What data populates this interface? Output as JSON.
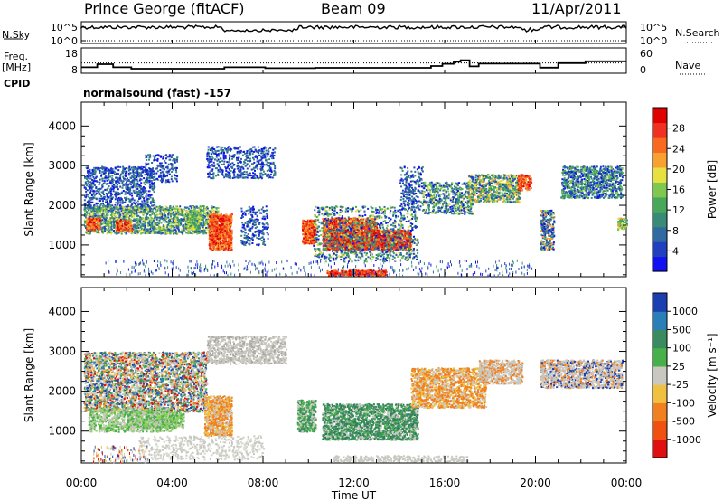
{
  "header": {
    "station": "Prince George (fitACF)",
    "beam": "Beam 09",
    "date": "11/Apr/2011"
  },
  "labels": {
    "n_sky": "N.Sky",
    "n_search": "N.Search",
    "freq": "Freq.",
    "freq_unit": "[MHz]",
    "nave": "Nave",
    "cpid": "CPID",
    "program": "normalsound (fast) -157"
  },
  "chart_data": [
    {
      "type": "line",
      "name": "noise-panel",
      "ylabels_left": [
        "10^5",
        "10^0"
      ],
      "ylabels_right": [
        "10^5",
        "10^0"
      ]
    },
    {
      "type": "line",
      "name": "freq-nave-panel",
      "ylabels_left": [
        "18",
        "8"
      ],
      "ylabels_right": [
        "60",
        "0"
      ],
      "freq_steps": [
        {
          "t": 0.0,
          "v": 10.3
        },
        {
          "t": 0.7,
          "v": 12.0
        },
        {
          "t": 1.4,
          "v": 10.3
        },
        {
          "t": 2.2,
          "v": 9.5
        },
        {
          "t": 6.3,
          "v": 10.3
        },
        {
          "t": 8.1,
          "v": 9.8
        },
        {
          "t": 10.3,
          "v": 10.0
        },
        {
          "t": 15.4,
          "v": 11.0
        },
        {
          "t": 15.9,
          "v": 12.2
        },
        {
          "t": 16.4,
          "v": 13.3
        },
        {
          "t": 16.7,
          "v": 14.2
        },
        {
          "t": 17.1,
          "v": 10.8
        },
        {
          "t": 17.5,
          "v": 12.3
        },
        {
          "t": 20.2,
          "v": 10.1
        },
        {
          "t": 21.0,
          "v": 12.6
        },
        {
          "t": 22.2,
          "v": 13.6
        },
        {
          "t": 23.0,
          "v": 13.6
        },
        {
          "t": 24.0,
          "v": 13.6
        }
      ],
      "nave_level": 28
    },
    {
      "type": "heatmap",
      "name": "power",
      "ylabel": "Slant Range [km]",
      "yticks": [
        "1000",
        "2000",
        "3000",
        "4000"
      ],
      "ylim": [
        200,
        4600
      ],
      "colorbar_label": "Power [dB]",
      "colorbar_ticks": [
        "28",
        "24",
        "20",
        "16",
        "12",
        "8",
        "4"
      ],
      "colorbar_colors": [
        "#1010f0",
        "#2040c0",
        "#2f6aa0",
        "#3a8a78",
        "#48a85a",
        "#7ec850",
        "#e6e040",
        "#f8a030",
        "#f86a20",
        "#f03020",
        "#e00000"
      ]
    },
    {
      "type": "heatmap",
      "name": "velocity",
      "ylabel": "Slant Range [km]",
      "yticks": [
        "1000",
        "2000",
        "3000",
        "4000"
      ],
      "ylim": [
        200,
        4600
      ],
      "xlabel": "Time UT",
      "xticks": [
        "00:00",
        "04:00",
        "08:00",
        "12:00",
        "16:00",
        "20:00",
        "00:00"
      ],
      "xlim": [
        0,
        24
      ],
      "colorbar_label": "Velocity [m s⁻¹]",
      "colorbar_ticks": [
        "1000",
        "500",
        "100",
        "25",
        "-25",
        "-100",
        "-500",
        "-1000"
      ],
      "colorbar_colors": [
        "#1a3fb0",
        "#2a7fb8",
        "#3a8c60",
        "#48b048",
        "#c8c8c0",
        "#f0c040",
        "#f08020",
        "#f05010",
        "#e01010"
      ]
    }
  ]
}
